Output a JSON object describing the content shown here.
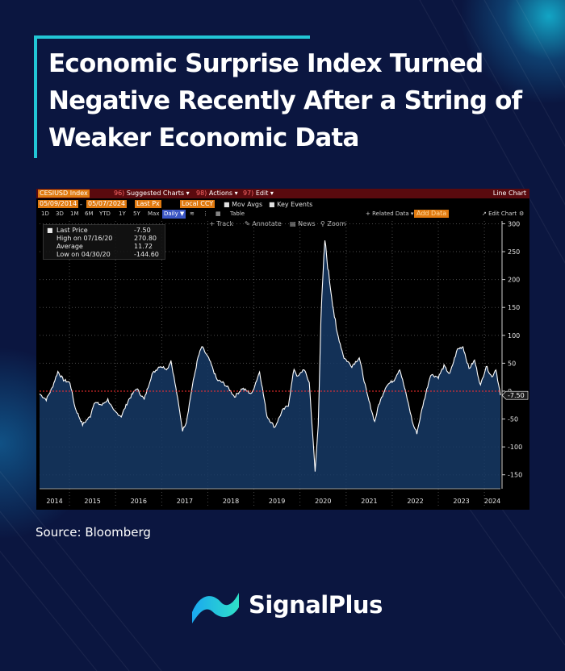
{
  "title": "Economic Surprise Index Turned Negative Recently After a String of Weaker Economic Data",
  "source": "Source: Bloomberg",
  "brand": {
    "name": "SignalPlus",
    "logo_icon": "signalplus-logo-icon"
  },
  "terminal": {
    "ticker": "CESIUSD Index",
    "menu": [
      {
        "num": "96)",
        "label": "Suggested Charts ▾"
      },
      {
        "num": "98)",
        "label": "Actions ▾"
      },
      {
        "num": "97)",
        "label": "Edit ▾"
      }
    ],
    "chart_mode": "Line Chart",
    "start_date": "05/09/2014",
    "end_date": "05/07/2024",
    "field": "Last Px",
    "currency": "Local CCY",
    "mov_avgs": "Mov Avgs",
    "key_events": "Key Events",
    "periods": [
      "1D",
      "3D",
      "1M",
      "6M",
      "YTD",
      "1Y",
      "5Y",
      "Max"
    ],
    "frequency": "Daily ▼",
    "table": "Table",
    "related_data": "+ Related Data ▾",
    "add_data": "Add Data",
    "edit_chart": "↗ Edit Chart",
    "tools": [
      "Track",
      "Annotate",
      "News",
      "Zoom"
    ],
    "legend": {
      "last_label": "Last Price",
      "last_value": "-7.50",
      "high_label": "High on 07/16/20",
      "high_value": "270.80",
      "avg_label": "Average",
      "avg_value": "11.72",
      "low_label": "Low on 04/30/20",
      "low_value": "-144.60"
    }
  },
  "chart_data": {
    "type": "area",
    "series": [
      {
        "values_by_date": [
          [
            "2014-05-09",
            -5
          ],
          [
            "2014-07-01",
            -15
          ],
          [
            "2014-08-15",
            5
          ],
          [
            "2014-10-01",
            35
          ],
          [
            "2014-11-15",
            20
          ],
          [
            "2015-01-05",
            15
          ],
          [
            "2015-02-15",
            -30
          ],
          [
            "2015-04-15",
            -60
          ],
          [
            "2015-06-15",
            -45
          ],
          [
            "2015-07-15",
            -20
          ],
          [
            "2015-09-15",
            -25
          ],
          [
            "2015-11-01",
            -15
          ],
          [
            "2015-12-15",
            -35
          ],
          [
            "2016-02-15",
            -45
          ],
          [
            "2016-04-15",
            -15
          ],
          [
            "2016-06-15",
            5
          ],
          [
            "2016-08-15",
            -15
          ],
          [
            "2016-10-15",
            30
          ],
          [
            "2016-12-15",
            45
          ],
          [
            "2017-02-15",
            40
          ],
          [
            "2017-03-15",
            55
          ],
          [
            "2017-05-01",
            -5
          ],
          [
            "2017-06-15",
            -70
          ],
          [
            "2017-07-15",
            -55
          ],
          [
            "2017-09-01",
            10
          ],
          [
            "2017-10-15",
            60
          ],
          [
            "2017-11-15",
            80
          ],
          [
            "2018-01-15",
            55
          ],
          [
            "2018-03-15",
            20
          ],
          [
            "2018-05-01",
            15
          ],
          [
            "2018-06-15",
            5
          ],
          [
            "2018-08-01",
            -10
          ],
          [
            "2018-10-01",
            5
          ],
          [
            "2018-12-15",
            -5
          ],
          [
            "2019-02-15",
            35
          ],
          [
            "2019-04-15",
            -45
          ],
          [
            "2019-06-15",
            -65
          ],
          [
            "2019-08-15",
            -35
          ],
          [
            "2019-10-01",
            -25
          ],
          [
            "2019-11-15",
            40
          ],
          [
            "2019-12-15",
            25
          ],
          [
            "2020-02-01",
            40
          ],
          [
            "2020-03-15",
            15
          ],
          [
            "2020-04-30",
            -144.6
          ],
          [
            "2020-05-25",
            -60
          ],
          [
            "2020-06-15",
            130
          ],
          [
            "2020-07-16",
            270.8
          ],
          [
            "2020-08-15",
            210
          ],
          [
            "2020-09-15",
            160
          ],
          [
            "2020-10-15",
            110
          ],
          [
            "2020-12-15",
            60
          ],
          [
            "2021-02-15",
            45
          ],
          [
            "2021-04-15",
            60
          ],
          [
            "2021-06-15",
            -5
          ],
          [
            "2021-08-15",
            -55
          ],
          [
            "2021-09-15",
            -25
          ],
          [
            "2021-11-15",
            10
          ],
          [
            "2022-01-15",
            20
          ],
          [
            "2022-03-01",
            40
          ],
          [
            "2022-05-01",
            -15
          ],
          [
            "2022-06-15",
            -60
          ],
          [
            "2022-07-15",
            -75
          ],
          [
            "2022-09-01",
            -25
          ],
          [
            "2022-11-01",
            30
          ],
          [
            "2023-01-01",
            25
          ],
          [
            "2023-02-15",
            45
          ],
          [
            "2023-04-01",
            30
          ],
          [
            "2023-06-01",
            75
          ],
          [
            "2023-07-15",
            80
          ],
          [
            "2023-09-01",
            40
          ],
          [
            "2023-10-15",
            55
          ],
          [
            "2023-12-01",
            10
          ],
          [
            "2024-01-15",
            45
          ],
          [
            "2024-03-01",
            25
          ],
          [
            "2024-04-01",
            40
          ],
          [
            "2024-05-07",
            -7.5
          ]
        ]
      }
    ],
    "x_tick_labels": [
      "2014",
      "2015",
      "2016",
      "2017",
      "2018",
      "2019",
      "2020",
      "2021",
      "2022",
      "2023",
      "2024"
    ],
    "y_ticks": [
      300,
      250,
      200,
      150,
      100,
      50,
      0,
      -50,
      -100,
      -150
    ],
    "ylim": [
      -175,
      305
    ],
    "xlim": [
      "2014-05-09",
      "2024-05-07"
    ],
    "reference_line": 0,
    "last_value_label": "-7.50",
    "grid": true,
    "colors": {
      "line": "#ffffff",
      "fill": "#163a66",
      "reference": "#ff3030",
      "background": "#000000"
    }
  }
}
